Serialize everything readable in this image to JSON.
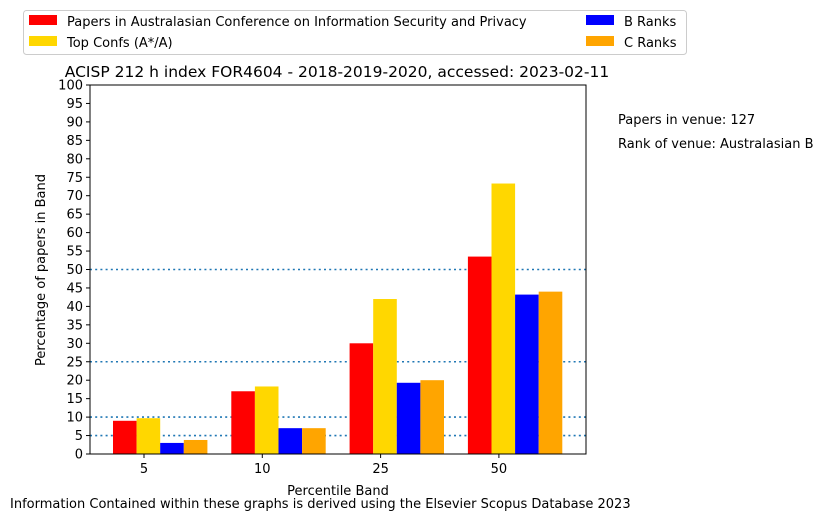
{
  "chart_data": {
    "type": "bar",
    "title": "ACISP 212 h index FOR4604 - 2018-2019-2020, accessed: 2023-02-11",
    "xlabel": "Percentile Band",
    "ylabel": "Percentage of papers in Band",
    "categories": [
      "5",
      "10",
      "25",
      "50"
    ],
    "ylim": [
      0,
      100
    ],
    "yticks": [
      0,
      5,
      10,
      15,
      20,
      25,
      30,
      35,
      40,
      45,
      50,
      55,
      60,
      65,
      70,
      75,
      80,
      85,
      90,
      95,
      100
    ],
    "reference_lines": [
      5,
      10,
      25,
      50
    ],
    "legend_position": "top, above plot, two columns",
    "grid": false,
    "series": [
      {
        "name": "Papers in Australasian Conference on Information Security and Privacy",
        "color": "#ff0000",
        "values": [
          9,
          17,
          30,
          53.5
        ]
      },
      {
        "name": "Top Confs (A*/A)",
        "color": "#ffd700",
        "values": [
          9.7,
          18.3,
          42,
          73.3
        ]
      },
      {
        "name": "B Ranks",
        "color": "#0000ff",
        "values": [
          3,
          7,
          19.3,
          43.2
        ]
      },
      {
        "name": "C Ranks",
        "color": "#ffa500",
        "values": [
          3.8,
          7,
          20,
          44
        ]
      }
    ],
    "annotations": [
      "Papers in venue: 127",
      "Rank of venue: Australasian B"
    ],
    "footer": "Information Contained within these graphs is derived using the Elsevier Scopus Database 2023"
  }
}
